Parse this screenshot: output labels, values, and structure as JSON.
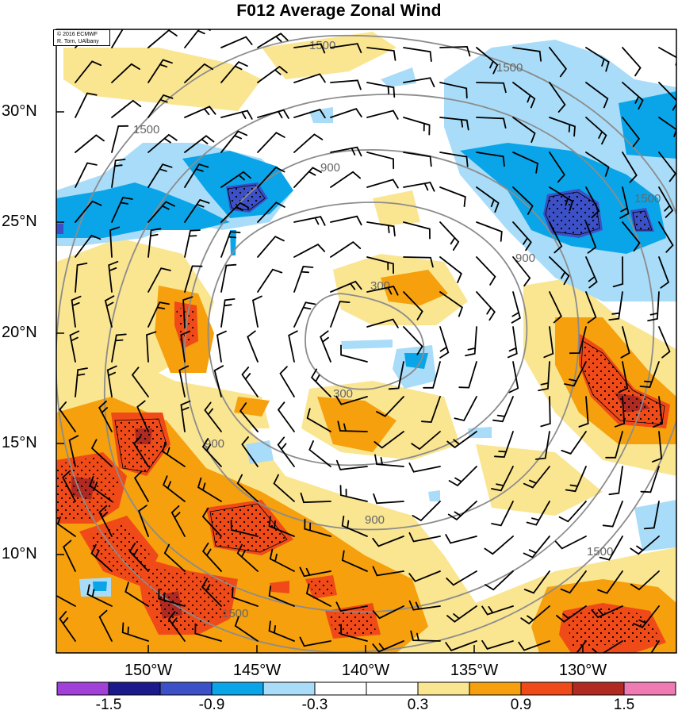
{
  "title": "F012 Average Zonal Wind",
  "credit": {
    "line1": "© 2016 ECMWF",
    "line2": "R. Torn, UAlbany"
  },
  "lat_labels": [
    "30°N",
    "25°N",
    "20°N",
    "15°N",
    "10°N"
  ],
  "lon_labels": [
    "150°W",
    "145°W",
    "140°W",
    "135°W",
    "130°W"
  ],
  "contour_labels": [
    "300",
    "300",
    "900",
    "900",
    "900",
    "900",
    "1500",
    "1500",
    "1500",
    "1500",
    "1500",
    "1500"
  ],
  "colorbar": {
    "tick_labels": [
      "-1.5",
      "-0.9",
      "-0.3",
      "0.3",
      "0.9",
      "1.5"
    ],
    "colors": [
      "#a040d8",
      "#1a1a8c",
      "#3c50c8",
      "#0aa5e8",
      "#a8dcf8",
      "#ffffff",
      "#ffffff",
      "#fae591",
      "#f5a00c",
      "#f04a18",
      "#b02a22",
      "#f07ab4"
    ]
  }
}
